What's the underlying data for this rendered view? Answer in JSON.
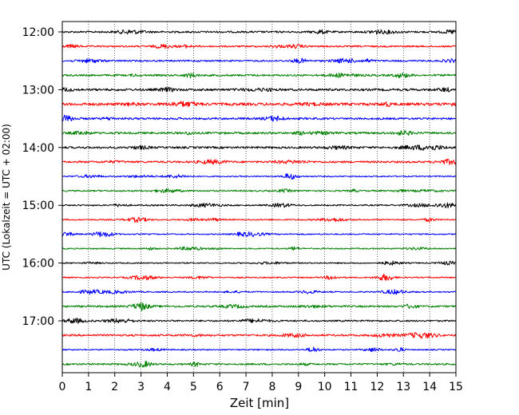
{
  "chart_data": {
    "type": "line",
    "title": "",
    "xlabel": "Zeit  [min]",
    "ylabel": "UTC (Lokalzeit = UTC + 02:00)",
    "xlim": [
      0,
      15
    ],
    "x_ticks": [
      "0",
      "1",
      "2",
      "3",
      "4",
      "5",
      "6",
      "7",
      "8",
      "9",
      "10",
      "11",
      "12",
      "13",
      "14",
      "15"
    ],
    "y_tick_labels": [
      "12:00",
      "13:00",
      "14:00",
      "15:00",
      "16:00",
      "17:00"
    ],
    "grid": "vertical dotted",
    "trace_interval_minutes": 15,
    "series": [
      {
        "start_utc": "12:00",
        "color": "#000000",
        "noise": 0.9
      },
      {
        "start_utc": "12:15",
        "color": "#ff0000",
        "noise": 0.8
      },
      {
        "start_utc": "12:30",
        "color": "#0000ff",
        "noise": 0.8
      },
      {
        "start_utc": "12:45",
        "color": "#008000",
        "noise": 0.9
      },
      {
        "start_utc": "13:00",
        "color": "#000000",
        "noise": 1.1
      },
      {
        "start_utc": "13:15",
        "color": "#ff0000",
        "noise": 1.3
      },
      {
        "start_utc": "13:30",
        "color": "#0000ff",
        "noise": 1.0
      },
      {
        "start_utc": "13:45",
        "color": "#008000",
        "noise": 1.0
      },
      {
        "start_utc": "14:00",
        "color": "#000000",
        "noise": 1.0
      },
      {
        "start_utc": "14:15",
        "color": "#ff0000",
        "noise": 0.9
      },
      {
        "start_utc": "14:30",
        "color": "#0000ff",
        "noise": 0.6
      },
      {
        "start_utc": "14:45",
        "color": "#008000",
        "noise": 0.7
      },
      {
        "start_utc": "15:00",
        "color": "#000000",
        "noise": 0.7
      },
      {
        "start_utc": "15:15",
        "color": "#ff0000",
        "noise": 0.6
      },
      {
        "start_utc": "15:30",
        "color": "#0000ff",
        "noise": 0.6
      },
      {
        "start_utc": "15:45",
        "color": "#008000",
        "noise": 0.6
      },
      {
        "start_utc": "16:00",
        "color": "#000000",
        "noise": 0.6
      },
      {
        "start_utc": "16:15",
        "color": "#ff0000",
        "noise": 0.6
      },
      {
        "start_utc": "16:30",
        "color": "#0000ff",
        "noise": 0.6
      },
      {
        "start_utc": "16:45",
        "color": "#008000",
        "noise": 0.9
      },
      {
        "start_utc": "17:00",
        "color": "#000000",
        "noise": 0.8
      },
      {
        "start_utc": "17:15",
        "color": "#ff0000",
        "noise": 0.9
      },
      {
        "start_utc": "17:30",
        "color": "#0000ff",
        "noise": 0.6
      },
      {
        "start_utc": "17:45",
        "color": "#008000",
        "noise": 0.8
      }
    ]
  }
}
